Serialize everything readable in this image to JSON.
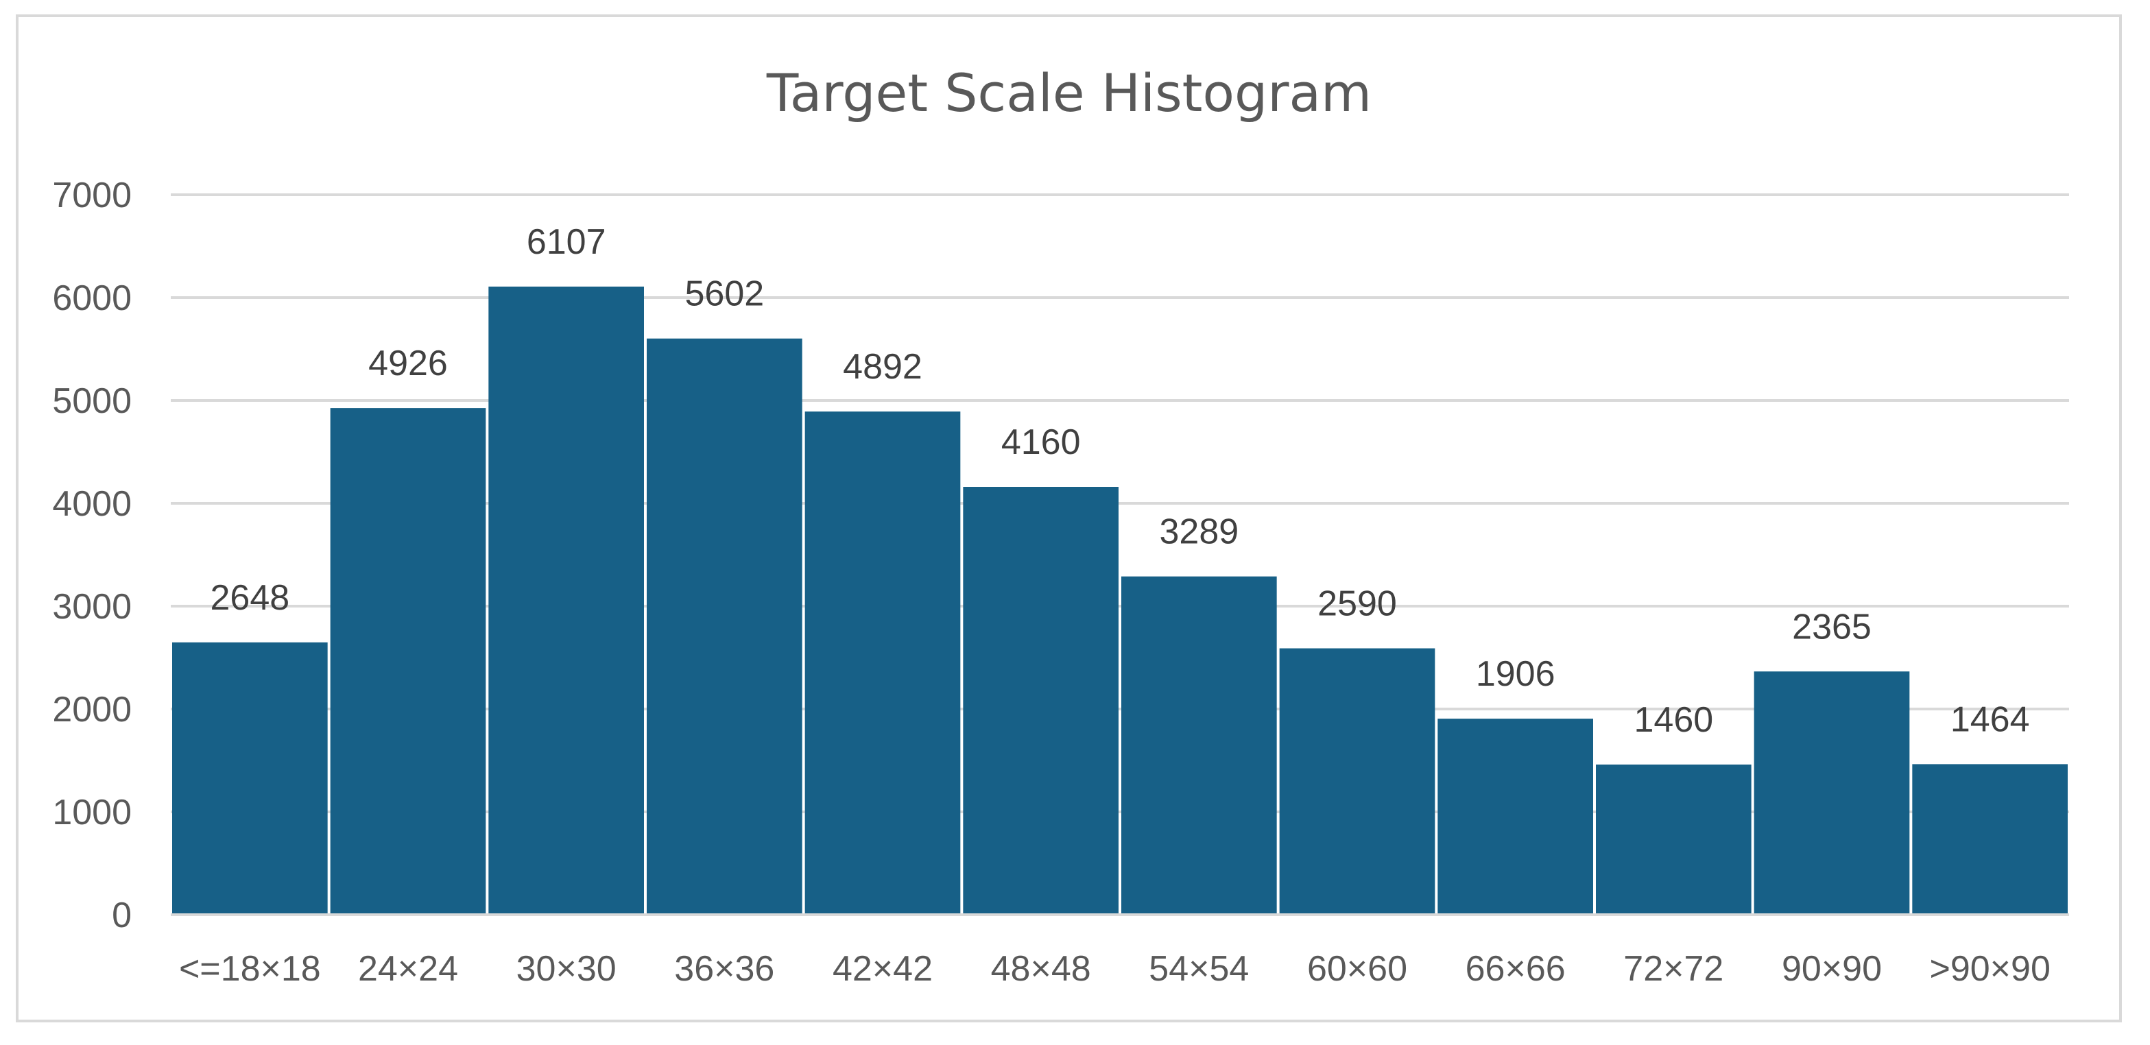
{
  "chart_data": {
    "type": "bar",
    "title": "Target Scale Histogram",
    "categories": [
      "<=18×18",
      "24×24",
      "30×30",
      "36×36",
      "42×42",
      "48×48",
      "54×54",
      "60×60",
      "66×66",
      "72×72",
      "90×90",
      ">90×90"
    ],
    "values": [
      2648,
      4926,
      6107,
      5602,
      4892,
      4160,
      3289,
      2590,
      1906,
      1460,
      2365,
      1464
    ],
    "yticks": [
      "0",
      "1000",
      "2000",
      "3000",
      "4000",
      "5000",
      "6000",
      "7000"
    ],
    "ylim": [
      0,
      7000
    ],
    "xlabel": "",
    "ylabel": "",
    "grid": true,
    "bar_color": "#176087",
    "gridline_color": "#d9d9d9",
    "data_labels": true
  }
}
